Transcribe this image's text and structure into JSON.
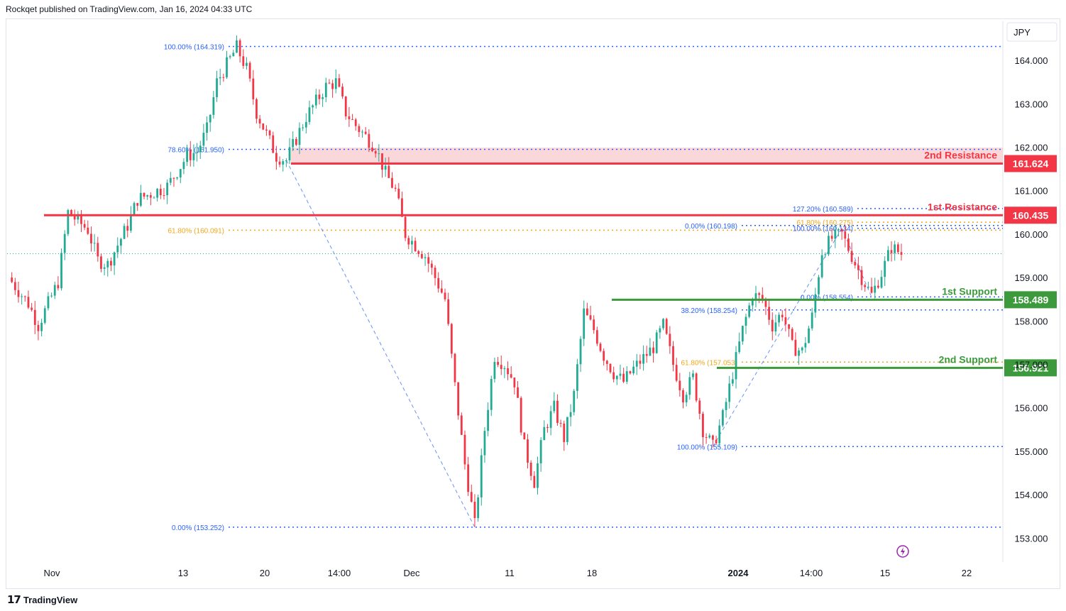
{
  "header": {
    "attribution": "Rockqet published on TradingView.com, Jan 16, 2024 04:33 UTC"
  },
  "footer": {
    "brand": "TradingView",
    "logo_icon": "tradingview-logo-icon"
  },
  "colors": {
    "up": "#22ab94",
    "down": "#f23645",
    "resistance": "#f23645",
    "support": "#3c9a3c",
    "fib_blue": "#2962ff",
    "fib_orange": "#f2a71b",
    "zone_fill": "#f8c9cc"
  },
  "chart_data": {
    "type": "candlestick",
    "symbol_currency": "JPY",
    "ylim": [
      152.45,
      164.9
    ],
    "y_ticks": [
      "164.000",
      "163.000",
      "162.000",
      "161.000",
      "160.000",
      "159.000",
      "158.000",
      "157.000",
      "156.000",
      "155.000",
      "154.000",
      "153.000"
    ],
    "x_ticks": [
      "Nov",
      "13",
      "20",
      "14:00",
      "Dec",
      "11",
      "18",
      "2024",
      "14:00",
      "15",
      "22"
    ],
    "current_price": 159.55,
    "price_path": [
      [
        0,
        159.0
      ],
      [
        2,
        158.4
      ],
      [
        3,
        157.9
      ],
      [
        5,
        158.9
      ],
      [
        6,
        160.5
      ],
      [
        8,
        160.1
      ],
      [
        9,
        159.4
      ],
      [
        10,
        159.3
      ],
      [
        12,
        160.2
      ],
      [
        13,
        160.8
      ],
      [
        14,
        160.9
      ],
      [
        16,
        161.1
      ],
      [
        18,
        161.8
      ],
      [
        19,
        161.9
      ],
      [
        20,
        162.4
      ],
      [
        21,
        163.5
      ],
      [
        23,
        164.3
      ],
      [
        24,
        163.8
      ],
      [
        25,
        162.8
      ],
      [
        26,
        162.3
      ],
      [
        27,
        161.8
      ],
      [
        28,
        161.7
      ],
      [
        30,
        162.7
      ],
      [
        32,
        163.4
      ],
      [
        33,
        163.5
      ],
      [
        34,
        162.8
      ],
      [
        35,
        162.5
      ],
      [
        37,
        162.0
      ],
      [
        38,
        161.4
      ],
      [
        39,
        161.0
      ],
      [
        40,
        160.0
      ],
      [
        42,
        159.5
      ],
      [
        44,
        158.5
      ],
      [
        45,
        156.5
      ],
      [
        46,
        154.7
      ],
      [
        47,
        153.3
      ],
      [
        48,
        155.5
      ],
      [
        49,
        157.2
      ],
      [
        50,
        157.0
      ],
      [
        51,
        156.6
      ],
      [
        52,
        155.1
      ],
      [
        53,
        154.3
      ],
      [
        54,
        155.5
      ],
      [
        55,
        156.0
      ],
      [
        56,
        155.3
      ],
      [
        57,
        156.3
      ],
      [
        58,
        158.2
      ],
      [
        59,
        157.8
      ],
      [
        60,
        157.2
      ],
      [
        61,
        156.8
      ],
      [
        62,
        156.6
      ],
      [
        63,
        156.9
      ],
      [
        65,
        157.4
      ],
      [
        66,
        157.9
      ],
      [
        67,
        157.0
      ],
      [
        68,
        156.3
      ],
      [
        69,
        156.7
      ],
      [
        70,
        155.5
      ],
      [
        71,
        155.1
      ],
      [
        72,
        155.8
      ],
      [
        73,
        156.8
      ],
      [
        74,
        157.8
      ],
      [
        75,
        158.6
      ],
      [
        76,
        158.5
      ],
      [
        77,
        157.9
      ],
      [
        78,
        158.2
      ],
      [
        79,
        157.4
      ],
      [
        80,
        157.3
      ],
      [
        81,
        158.1
      ],
      [
        82,
        159.6
      ],
      [
        83,
        159.9
      ],
      [
        84,
        160.0
      ],
      [
        85,
        159.5
      ],
      [
        86,
        159.0
      ],
      [
        87,
        158.6
      ],
      [
        88,
        159.1
      ],
      [
        89,
        159.7
      ],
      [
        90,
        159.55
      ]
    ],
    "horizontal_levels": [
      {
        "label": "2nd Resistance",
        "price": 161.624,
        "price_label": "161.624",
        "kind": "resistance",
        "zone_top": 161.99
      },
      {
        "label": "1st Resistance",
        "price": 160.435,
        "price_label": "160.435",
        "kind": "resistance"
      },
      {
        "label": "1st Support",
        "price": 158.489,
        "price_label": "158.489",
        "kind": "support"
      },
      {
        "label": "2nd Support",
        "price": 156.921,
        "price_label": "156.921",
        "kind": "support"
      }
    ],
    "fib_labels": [
      {
        "text": "100.00% (164.319)",
        "price": 164.319,
        "color": "blue"
      },
      {
        "text": "78.60% (161.950)",
        "price": 161.95,
        "color": "blue"
      },
      {
        "text": "61.80% (160.091)",
        "price": 160.091,
        "color": "orange"
      },
      {
        "text": "0.00% (153.252)",
        "price": 153.252,
        "color": "blue"
      },
      {
        "text": "127.20% (160.589)",
        "price": 160.589,
        "color": "blue"
      },
      {
        "text": "61.80% (160.275)",
        "price": 160.275,
        "color": "orange"
      },
      {
        "text": "0.00% (160.198)",
        "price": 160.198,
        "color": "blue"
      },
      {
        "text": "100.00% (160.134)",
        "price": 160.134,
        "color": "blue"
      },
      {
        "text": "0.00% (158.554)",
        "price": 158.554,
        "color": "blue"
      },
      {
        "text": "38.20% (158.254)",
        "price": 158.254,
        "color": "blue"
      },
      {
        "text": "61.80% (157.053)",
        "price": 157.053,
        "color": "orange"
      },
      {
        "text": "100.00% (155.109)",
        "price": 155.109,
        "color": "blue"
      }
    ],
    "fib_trendlines": [
      {
        "from": [
          28,
          161.7
        ],
        "to": [
          47,
          153.252
        ]
      },
      {
        "from": [
          71,
          155.109
        ],
        "to": [
          84,
          160.134
        ]
      },
      {
        "from": [
          84,
          160.134
        ],
        "to": [
          87,
          158.554
        ]
      }
    ],
    "grid": false,
    "icons": [
      "flash-icon"
    ]
  }
}
